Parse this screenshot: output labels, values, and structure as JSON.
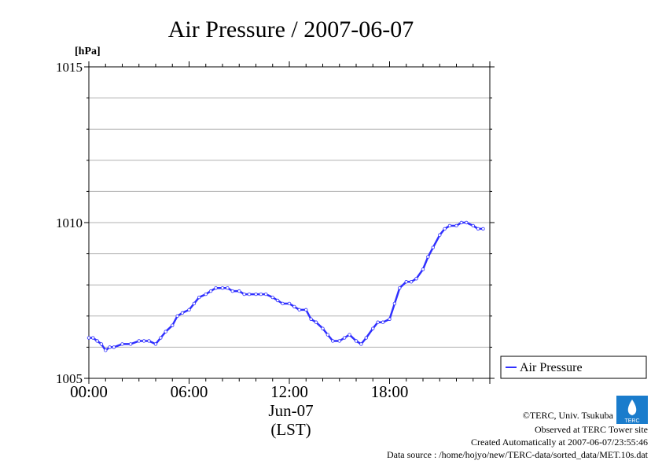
{
  "chart_data": {
    "type": "line",
    "title": "Air Pressure / 2007-06-07",
    "ylabel": "[hPa]",
    "xlabel_date": "Jun-07",
    "xlabel_tz": "(LST)",
    "ylim": [
      1005,
      1015
    ],
    "xlim_hours": [
      0,
      24
    ],
    "y_ticks": [
      1005,
      1010,
      1015
    ],
    "y_tick_labels": [
      "1005",
      "1010",
      "1015"
    ],
    "x_ticks": [
      0,
      6,
      12,
      18
    ],
    "x_tick_labels": [
      "00:00",
      "06:00",
      "12:00",
      "18:00"
    ],
    "grid": true,
    "legend_position": "right",
    "series": [
      {
        "name": "Air Pressure",
        "color": "#3030ff",
        "x_hours": [
          0,
          0.25,
          0.5,
          0.75,
          1,
          1.25,
          1.5,
          2,
          2.5,
          3,
          3.3,
          3.6,
          4,
          4.3,
          4.6,
          5,
          5.3,
          5.6,
          6,
          6.3,
          6.6,
          7,
          7.3,
          7.6,
          8,
          8.3,
          8.6,
          9,
          9.3,
          9.6,
          10,
          10.3,
          10.6,
          11,
          11.3,
          11.6,
          12,
          12.3,
          12.6,
          13,
          13.3,
          13.6,
          14,
          14.3,
          14.6,
          15,
          15.3,
          15.6,
          16,
          16.3,
          16.6,
          17,
          17.3,
          17.6,
          18,
          18.3,
          18.6,
          19,
          19.3,
          19.6,
          20,
          20.3,
          20.6,
          21,
          21.3,
          21.6,
          22,
          22.3,
          22.6,
          23,
          23.3,
          23.6
        ],
        "values": [
          1006.3,
          1006.3,
          1006.2,
          1006.1,
          1005.9,
          1006.0,
          1006.0,
          1006.1,
          1006.1,
          1006.2,
          1006.2,
          1006.2,
          1006.1,
          1006.3,
          1006.5,
          1006.7,
          1007.0,
          1007.1,
          1007.2,
          1007.4,
          1007.6,
          1007.7,
          1007.8,
          1007.9,
          1007.9,
          1007.9,
          1007.8,
          1007.8,
          1007.7,
          1007.7,
          1007.7,
          1007.7,
          1007.7,
          1007.6,
          1007.5,
          1007.4,
          1007.4,
          1007.3,
          1007.2,
          1007.2,
          1006.9,
          1006.8,
          1006.6,
          1006.4,
          1006.2,
          1006.2,
          1006.3,
          1006.4,
          1006.2,
          1006.1,
          1006.3,
          1006.6,
          1006.8,
          1006.8,
          1006.9,
          1007.4,
          1007.9,
          1008.1,
          1008.1,
          1008.2,
          1008.5,
          1008.9,
          1009.2,
          1009.6,
          1009.8,
          1009.9,
          1009.9,
          1010.0,
          1010.0,
          1009.9,
          1009.8,
          1009.8
        ]
      }
    ]
  },
  "footer": {
    "credit": "©TERC, Univ. Tsukuba",
    "site": "Observed at TERC Tower site",
    "created": "Created Automatically at 2007-06-07/23:55:46",
    "source": "Data source : /home/hojyo/new/TERC-data/sorted_data/MET.10s.dat"
  },
  "logo": {
    "text": "TERC",
    "color": "#1a7ccc"
  }
}
